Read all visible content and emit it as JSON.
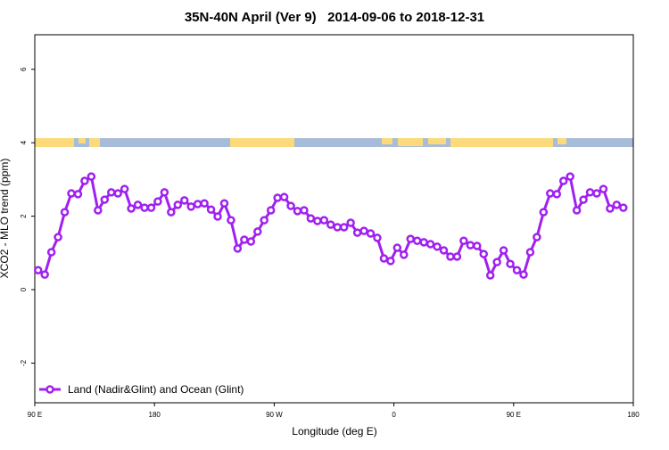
{
  "chart_data": {
    "type": "line",
    "title": "35N-40N April (Ver 9)   2014-09-06 to 2018-12-31",
    "x_label": "Longitude (deg E)",
    "y_label": "XCO2 - MLO trend (ppm)",
    "x": [
      92.5,
      97.5,
      102.5,
      107.5,
      112.5,
      117.5,
      122.5,
      127.5,
      132.5,
      137.5,
      142.5,
      147.5,
      152.5,
      157.5,
      162.5,
      167.5,
      172.5,
      177.5,
      182.5,
      187.5,
      192.5,
      197.5,
      202.5,
      207.5,
      212.5,
      217.5,
      222.5,
      227.5,
      232.5,
      237.5,
      242.5,
      247.5,
      252.5,
      257.5,
      262.5,
      267.5,
      272.5,
      277.5,
      282.5,
      287.5,
      292.5,
      297.5,
      302.5,
      307.5,
      312.5,
      317.5,
      322.5,
      327.5,
      332.5,
      337.5,
      342.5,
      347.5,
      352.5,
      357.5,
      362.5,
      367.5,
      372.5,
      377.5,
      382.5,
      387.5,
      392.5,
      397.5,
      402.5,
      407.5,
      412.5,
      417.5,
      422.5,
      427.5,
      432.5,
      437.5,
      442.5,
      447.5,
      452.5,
      457.5,
      462.5,
      467.5,
      472.5,
      477.5,
      482.5,
      487.5,
      492.5,
      497.5,
      502.5,
      507.5,
      512.5,
      517.5,
      522.5,
      527.5,
      532.5
    ],
    "series": [
      {
        "name": "Land (Nadir&Glint) and Ocean (Glint)",
        "color": "#a020f0",
        "values": [
          0.53,
          0.41,
          1.02,
          1.43,
          2.11,
          2.62,
          2.6,
          2.96,
          3.08,
          2.16,
          2.45,
          2.65,
          2.62,
          2.74,
          2.21,
          2.31,
          2.23,
          2.23,
          2.4,
          2.65,
          2.11,
          2.31,
          2.43,
          2.26,
          2.33,
          2.35,
          2.18,
          1.99,
          2.35,
          1.89,
          1.12,
          1.36,
          1.31,
          1.58,
          1.89,
          2.16,
          2.5,
          2.52,
          2.28,
          2.14,
          2.16,
          1.94,
          1.87,
          1.89,
          1.77,
          1.7,
          1.7,
          1.82,
          1.55,
          1.6,
          1.53,
          1.41,
          0.85,
          0.78,
          1.14,
          0.95,
          1.38,
          1.33,
          1.29,
          1.24,
          1.17,
          1.07,
          0.9,
          0.9,
          1.33,
          1.21,
          1.19,
          0.97,
          0.39,
          0.75,
          1.07,
          0.7,
          0.53,
          0.41,
          1.02,
          1.43,
          2.11,
          2.62,
          2.6,
          2.96,
          3.08,
          2.16,
          2.45,
          2.65,
          2.62,
          2.74,
          2.21,
          2.31,
          2.23
        ]
      }
    ],
    "xlim": [
      90,
      540
    ],
    "xticks": [
      {
        "value": 90,
        "label": "90 E"
      },
      {
        "value": 180,
        "label": "180"
      },
      {
        "value": 270,
        "label": "90 W"
      },
      {
        "value": 360,
        "label": "0"
      },
      {
        "value": 450,
        "label": "90 E"
      },
      {
        "value": 540,
        "label": "180"
      }
    ],
    "ylim": [
      -3.08,
      6.94
    ],
    "yticks": [
      -2,
      0,
      2,
      4,
      6
    ],
    "legend": "bottom-left"
  }
}
